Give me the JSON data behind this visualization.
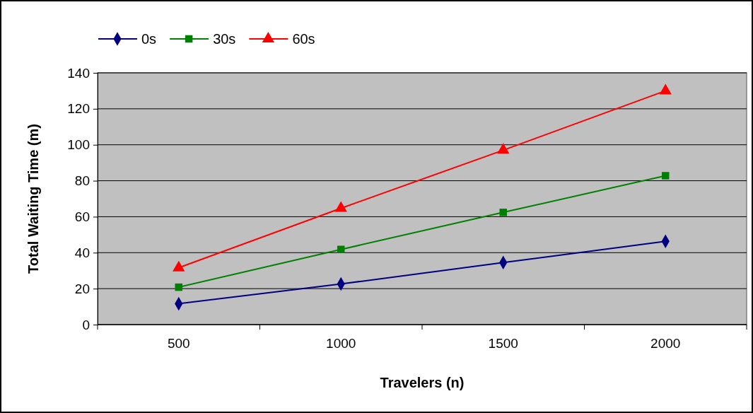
{
  "chart_data": {
    "type": "line",
    "xlabel": "Travelers (n)",
    "ylabel": "Total Waiting Time (m)",
    "categories": [
      "500",
      "1000",
      "1500",
      "2000"
    ],
    "series": [
      {
        "name": "0s",
        "color": "#000080",
        "marker": "diamond",
        "values": [
          11.6,
          22.6,
          34.5,
          46.3
        ]
      },
      {
        "name": "30s",
        "color": "#008000",
        "marker": "square",
        "values": [
          20.8,
          41.8,
          62.4,
          82.8
        ]
      },
      {
        "name": "60s",
        "color": "#ff0000",
        "marker": "triangle",
        "values": [
          31.6,
          64.7,
          97,
          130
        ]
      }
    ],
    "ylim": [
      0,
      140
    ],
    "yticks": [
      0,
      20,
      40,
      60,
      80,
      100,
      120,
      140
    ],
    "grid": "y",
    "legend": "top left",
    "line_style": "solid"
  }
}
